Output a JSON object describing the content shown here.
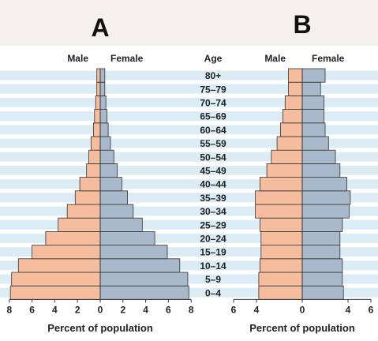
{
  "colors": {
    "male": "#f5bc9e",
    "female": "#a8b9cc",
    "stripe": "#dcecf4",
    "outline": "#333333",
    "header_band": "#f5f0f0"
  },
  "chart_data": [
    {
      "type": "bar",
      "orientation": "horizontal-pyramid",
      "title": "A",
      "left_label": "Male",
      "right_label": "Female",
      "center_label": "Age",
      "xlabel": "Percent of population",
      "xlim": [
        -8,
        8
      ],
      "ticks": [
        "8",
        "6",
        "4",
        "2",
        "0",
        "2",
        "4",
        "6",
        "8"
      ],
      "tick_values": [
        -8,
        -6,
        -4,
        -2,
        0,
        2,
        4,
        6,
        8
      ],
      "categories": [
        "0–4",
        "5–9",
        "10–14",
        "15–19",
        "20–24",
        "25–29",
        "30–34",
        "35–39",
        "40–44",
        "45–49",
        "50–54",
        "55–59",
        "60–64",
        "65–69",
        "70–74",
        "75–79",
        "80+"
      ],
      "series": [
        {
          "name": "Male",
          "values": [
            7.9,
            7.8,
            7.2,
            6.0,
            4.8,
            3.7,
            2.9,
            2.2,
            1.8,
            1.2,
            1.0,
            0.8,
            0.6,
            0.5,
            0.4,
            0.3,
            0.3
          ]
        },
        {
          "name": "Female",
          "values": [
            7.8,
            7.7,
            7.0,
            5.9,
            4.8,
            3.7,
            2.9,
            2.4,
            1.9,
            1.5,
            1.2,
            0.9,
            0.7,
            0.6,
            0.5,
            0.4,
            0.4
          ]
        }
      ]
    },
    {
      "type": "bar",
      "orientation": "horizontal-pyramid",
      "title": "B",
      "left_label": "Male",
      "right_label": "Female",
      "xlabel": "Percent of population",
      "xlim": [
        -6,
        6
      ],
      "ticks": [
        "6",
        "4",
        "0",
        "4",
        "6"
      ],
      "tick_values": [
        -6,
        -4,
        0,
        4,
        6
      ],
      "categories": [
        "0–4",
        "5–9",
        "10–14",
        "15–19",
        "20–24",
        "25–29",
        "30–34",
        "35–39",
        "40–44",
        "45–49",
        "50–54",
        "55–59",
        "60–64",
        "65–69",
        "70–74",
        "75–79",
        "80+"
      ],
      "series": [
        {
          "name": "Male",
          "values": [
            3.8,
            3.8,
            3.7,
            3.6,
            3.6,
            3.7,
            4.1,
            4.1,
            3.7,
            3.1,
            2.7,
            2.2,
            1.9,
            1.7,
            1.5,
            1.2,
            1.2
          ]
        },
        {
          "name": "Female",
          "values": [
            3.6,
            3.5,
            3.5,
            3.3,
            3.3,
            3.5,
            4.1,
            4.2,
            3.9,
            3.3,
            2.9,
            2.3,
            2.0,
            1.9,
            1.9,
            1.6,
            2.0
          ]
        }
      ]
    }
  ]
}
